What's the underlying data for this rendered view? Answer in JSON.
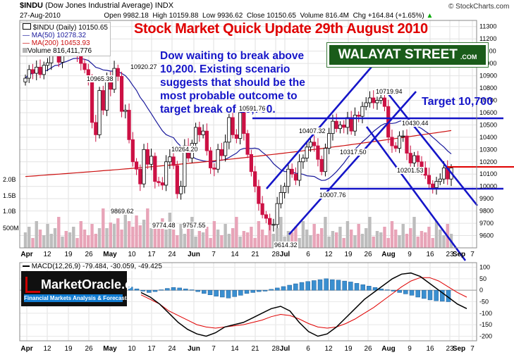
{
  "header": {
    "symbol": "$INDU",
    "name": "(Dow Jones Industrial Average)",
    "exchange": "INDX",
    "copyright": "© StockCharts.com",
    "date": "27-Aug-2010",
    "open_label": "Open",
    "open": "9982.18",
    "high_label": "High",
    "high": "10159.88",
    "low_label": "Low",
    "low": "9936.62",
    "close_label": "Close",
    "close": "10150.65",
    "volume_label": "Volume",
    "volume": "816.4M",
    "chg_label": "Chg",
    "chg": "+164.84 (+1.65%)",
    "chg_arrow": "▲"
  },
  "legend": {
    "line1": "$INDU (Daily) 10150.65",
    "ma50": "MA(50) 10278.32",
    "ma200": "MA(200) 10453.93",
    "volume": "Volume 816,411,776",
    "ma50_color": "#1a1a9c",
    "ma200_color": "#cc1111"
  },
  "title": "Stock Market Quick Update 29th August 2010",
  "brand": {
    "name": "WALAYAT STREET",
    "suffix": ".COM"
  },
  "annotation": "Dow waiting to break above 10,200. Existing scenario suggests that should be the most probable outcome to target break of 10,700.",
  "target_label": "Target 10,700",
  "marketoracle": {
    "name": "MarketOracle.co.uk",
    "tagline": "Financial Markets Analysis & Forecasts"
  },
  "macd_label": "MACD(12,26,9) -79.484, -30.059, -49.425",
  "chart_data": [
    {
      "type": "candlestick",
      "title": "Stock Market Quick Update 29th August 2010",
      "x_tick_labels": [
        "Apr",
        "12",
        "19",
        "26",
        "May",
        "10",
        "17",
        "24",
        "Jun",
        "7",
        "14",
        "21",
        "28",
        "Jul",
        "6",
        "12",
        "19",
        "26",
        "Aug",
        "9",
        "16",
        "23",
        "Sep",
        "7"
      ],
      "y_tick_labels": [
        "11300",
        "11200",
        "11100",
        "11000",
        "10900",
        "10800",
        "10700",
        "10600",
        "10500",
        "10400",
        "10300",
        "10200",
        "10100",
        "10000",
        "9900",
        "9800",
        "9700",
        "9600"
      ],
      "ylim": [
        9500,
        11350
      ],
      "volume_tick_labels": [
        "2.0B",
        "1.5B",
        "1.0B",
        "500M"
      ],
      "price_annotations": [
        {
          "label": "10965.38",
          "value": 10965.38
        },
        {
          "label": "10920.27",
          "value": 10920.27
        },
        {
          "label": "10264.20",
          "value": 10264.2
        },
        {
          "label": "9869.62",
          "value": 9869.62
        },
        {
          "label": "9774.48",
          "value": 9774.48
        },
        {
          "label": "9757.55",
          "value": 9757.55
        },
        {
          "label": "10591.76",
          "value": 10591.76
        },
        {
          "label": "10407.32",
          "value": 10407.32
        },
        {
          "label": "9614.32",
          "value": 9614.32
        },
        {
          "label": "10719.94",
          "value": 10719.94
        },
        {
          "label": "10430.44",
          "value": 10430.44
        },
        {
          "label": "10317.50",
          "value": 10317.5
        },
        {
          "label": "10201.53",
          "value": 10201.53
        },
        {
          "label": "10007.76",
          "value": 10007.76
        }
      ],
      "series": [
        {
          "name": "MA(50)",
          "value": 10278.32
        },
        {
          "name": "MA(200)",
          "value": 10453.93
        }
      ],
      "horizontal_levels": [
        10590,
        10200,
        10000
      ],
      "grid": true
    },
    {
      "type": "bar",
      "title": "MACD(12,26,9) -79.484, -30.059, -49.425",
      "y_tick_labels": [
        "100",
        "50",
        "0",
        "-50",
        "-100",
        "-150",
        "-200"
      ],
      "ylim": [
        -220,
        120
      ],
      "x_tick_labels": [
        "Apr",
        "12",
        "19",
        "26",
        "May",
        "10",
        "17",
        "24",
        "Jun",
        "7",
        "14",
        "21",
        "28",
        "Jul",
        "6",
        "12",
        "19",
        "26",
        "Aug",
        "9",
        "16",
        "23",
        "Sep",
        "7"
      ],
      "series": [
        {
          "name": "MACD",
          "value": -79.484
        },
        {
          "name": "Signal",
          "value": -30.059
        },
        {
          "name": "Histogram",
          "value": -49.425
        }
      ]
    }
  ]
}
